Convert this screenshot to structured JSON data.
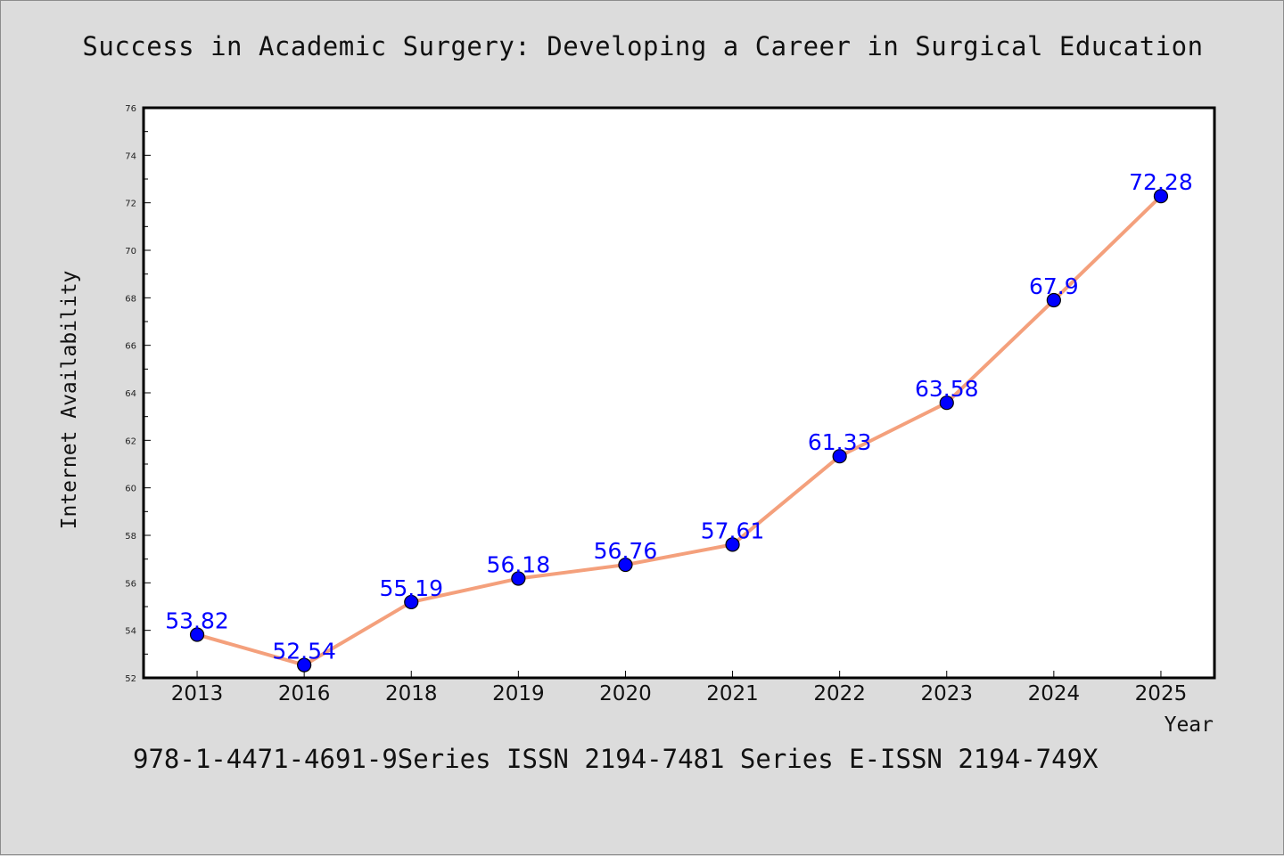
{
  "title": "Success in Academic Surgery: Developing a Career in Surgical Education",
  "footer": "978-1-4471-4691-9Series ISSN 2194-7481 Series E-ISSN 2194-749X",
  "chart_data": {
    "type": "line",
    "title": "Success in Academic Surgery: Developing a Career in Surgical Education",
    "xlabel": "Year",
    "ylabel": "Internet Availability",
    "categories": [
      "2013",
      "2016",
      "2018",
      "2019",
      "2020",
      "2021",
      "2022",
      "2023",
      "2024",
      "2025"
    ],
    "series": [
      {
        "values": [
          53.82,
          52.54,
          55.19,
          56.18,
          56.76,
          57.61,
          61.33,
          63.58,
          67.9,
          72.28
        ],
        "labels": [
          "53.82",
          "52.54",
          "55.19",
          "56.18",
          "56.76",
          "57.61",
          "61.33",
          "63.58",
          "67.9",
          "72.28"
        ]
      }
    ],
    "ylim": [
      52,
      76
    ],
    "yticks": [
      "52",
      "54",
      "56",
      "58",
      "60",
      "62",
      "64",
      "66",
      "68",
      "70",
      "72",
      "74",
      "76"
    ],
    "grid": false,
    "colors": {
      "line": "#f4a07c",
      "marker": "#0000ff",
      "label": "#0000ff",
      "background": "#dcdcdc",
      "plot_bg": "#ffffff"
    }
  }
}
